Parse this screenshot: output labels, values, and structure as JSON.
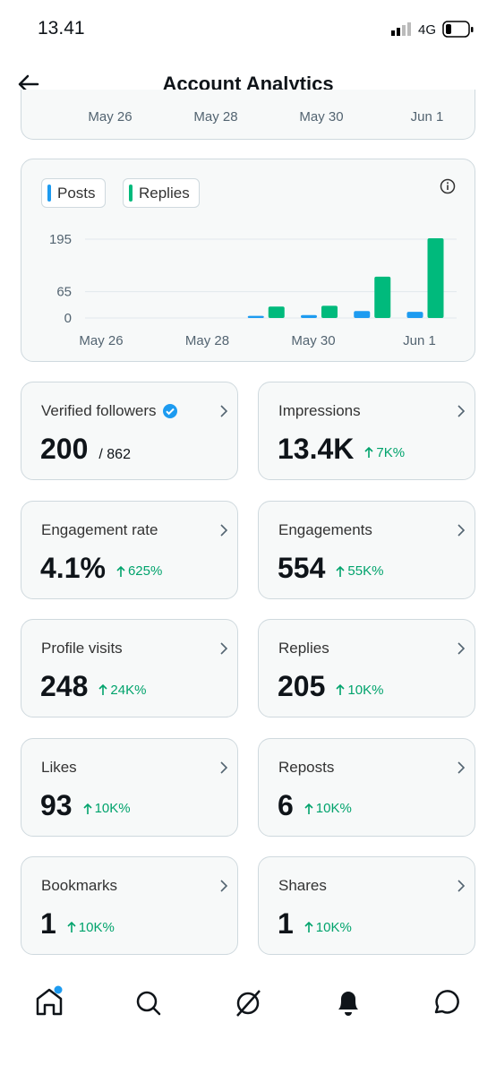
{
  "status_bar": {
    "time": "13.41",
    "network": "4G"
  },
  "header": {
    "title": "Account Analytics"
  },
  "top_card": {
    "x_labels": [
      "May 26",
      "May 28",
      "May 30",
      "Jun 1"
    ]
  },
  "chart_data": {
    "type": "bar",
    "categories": [
      "May 26",
      null,
      "May 28",
      null,
      "May 30",
      null,
      "Jun 1"
    ],
    "series": [
      {
        "name": "Posts",
        "color": "#1d9bf0",
        "values": [
          0,
          0,
          0,
          3,
          5,
          15,
          13
        ]
      },
      {
        "name": "Replies",
        "color": "#00ba7c",
        "values": [
          0,
          0,
          0,
          26,
          28,
          100,
          195
        ]
      }
    ],
    "ylim": [
      0,
      195
    ],
    "yticks": [
      0,
      65,
      195
    ],
    "grid": true
  },
  "metrics": [
    {
      "label": "Verified followers",
      "value": "200",
      "total": "/ 862"
    },
    {
      "label": "Impressions",
      "value": "13.4K",
      "change": "7K%"
    },
    {
      "label": "Engagement rate",
      "value": "4.1%",
      "change": "625%"
    },
    {
      "label": "Engagements",
      "value": "554",
      "change": "55K%"
    },
    {
      "label": "Profile visits",
      "value": "248",
      "change": "24K%"
    },
    {
      "label": "Replies",
      "value": "205",
      "change": "10K%"
    },
    {
      "label": "Likes",
      "value": "93",
      "change": "10K%"
    },
    {
      "label": "Reposts",
      "value": "6",
      "change": "10K%"
    },
    {
      "label": "Bookmarks",
      "value": "1",
      "change": "10K%"
    },
    {
      "label": "Shares",
      "value": "1",
      "change": "10K%"
    }
  ]
}
